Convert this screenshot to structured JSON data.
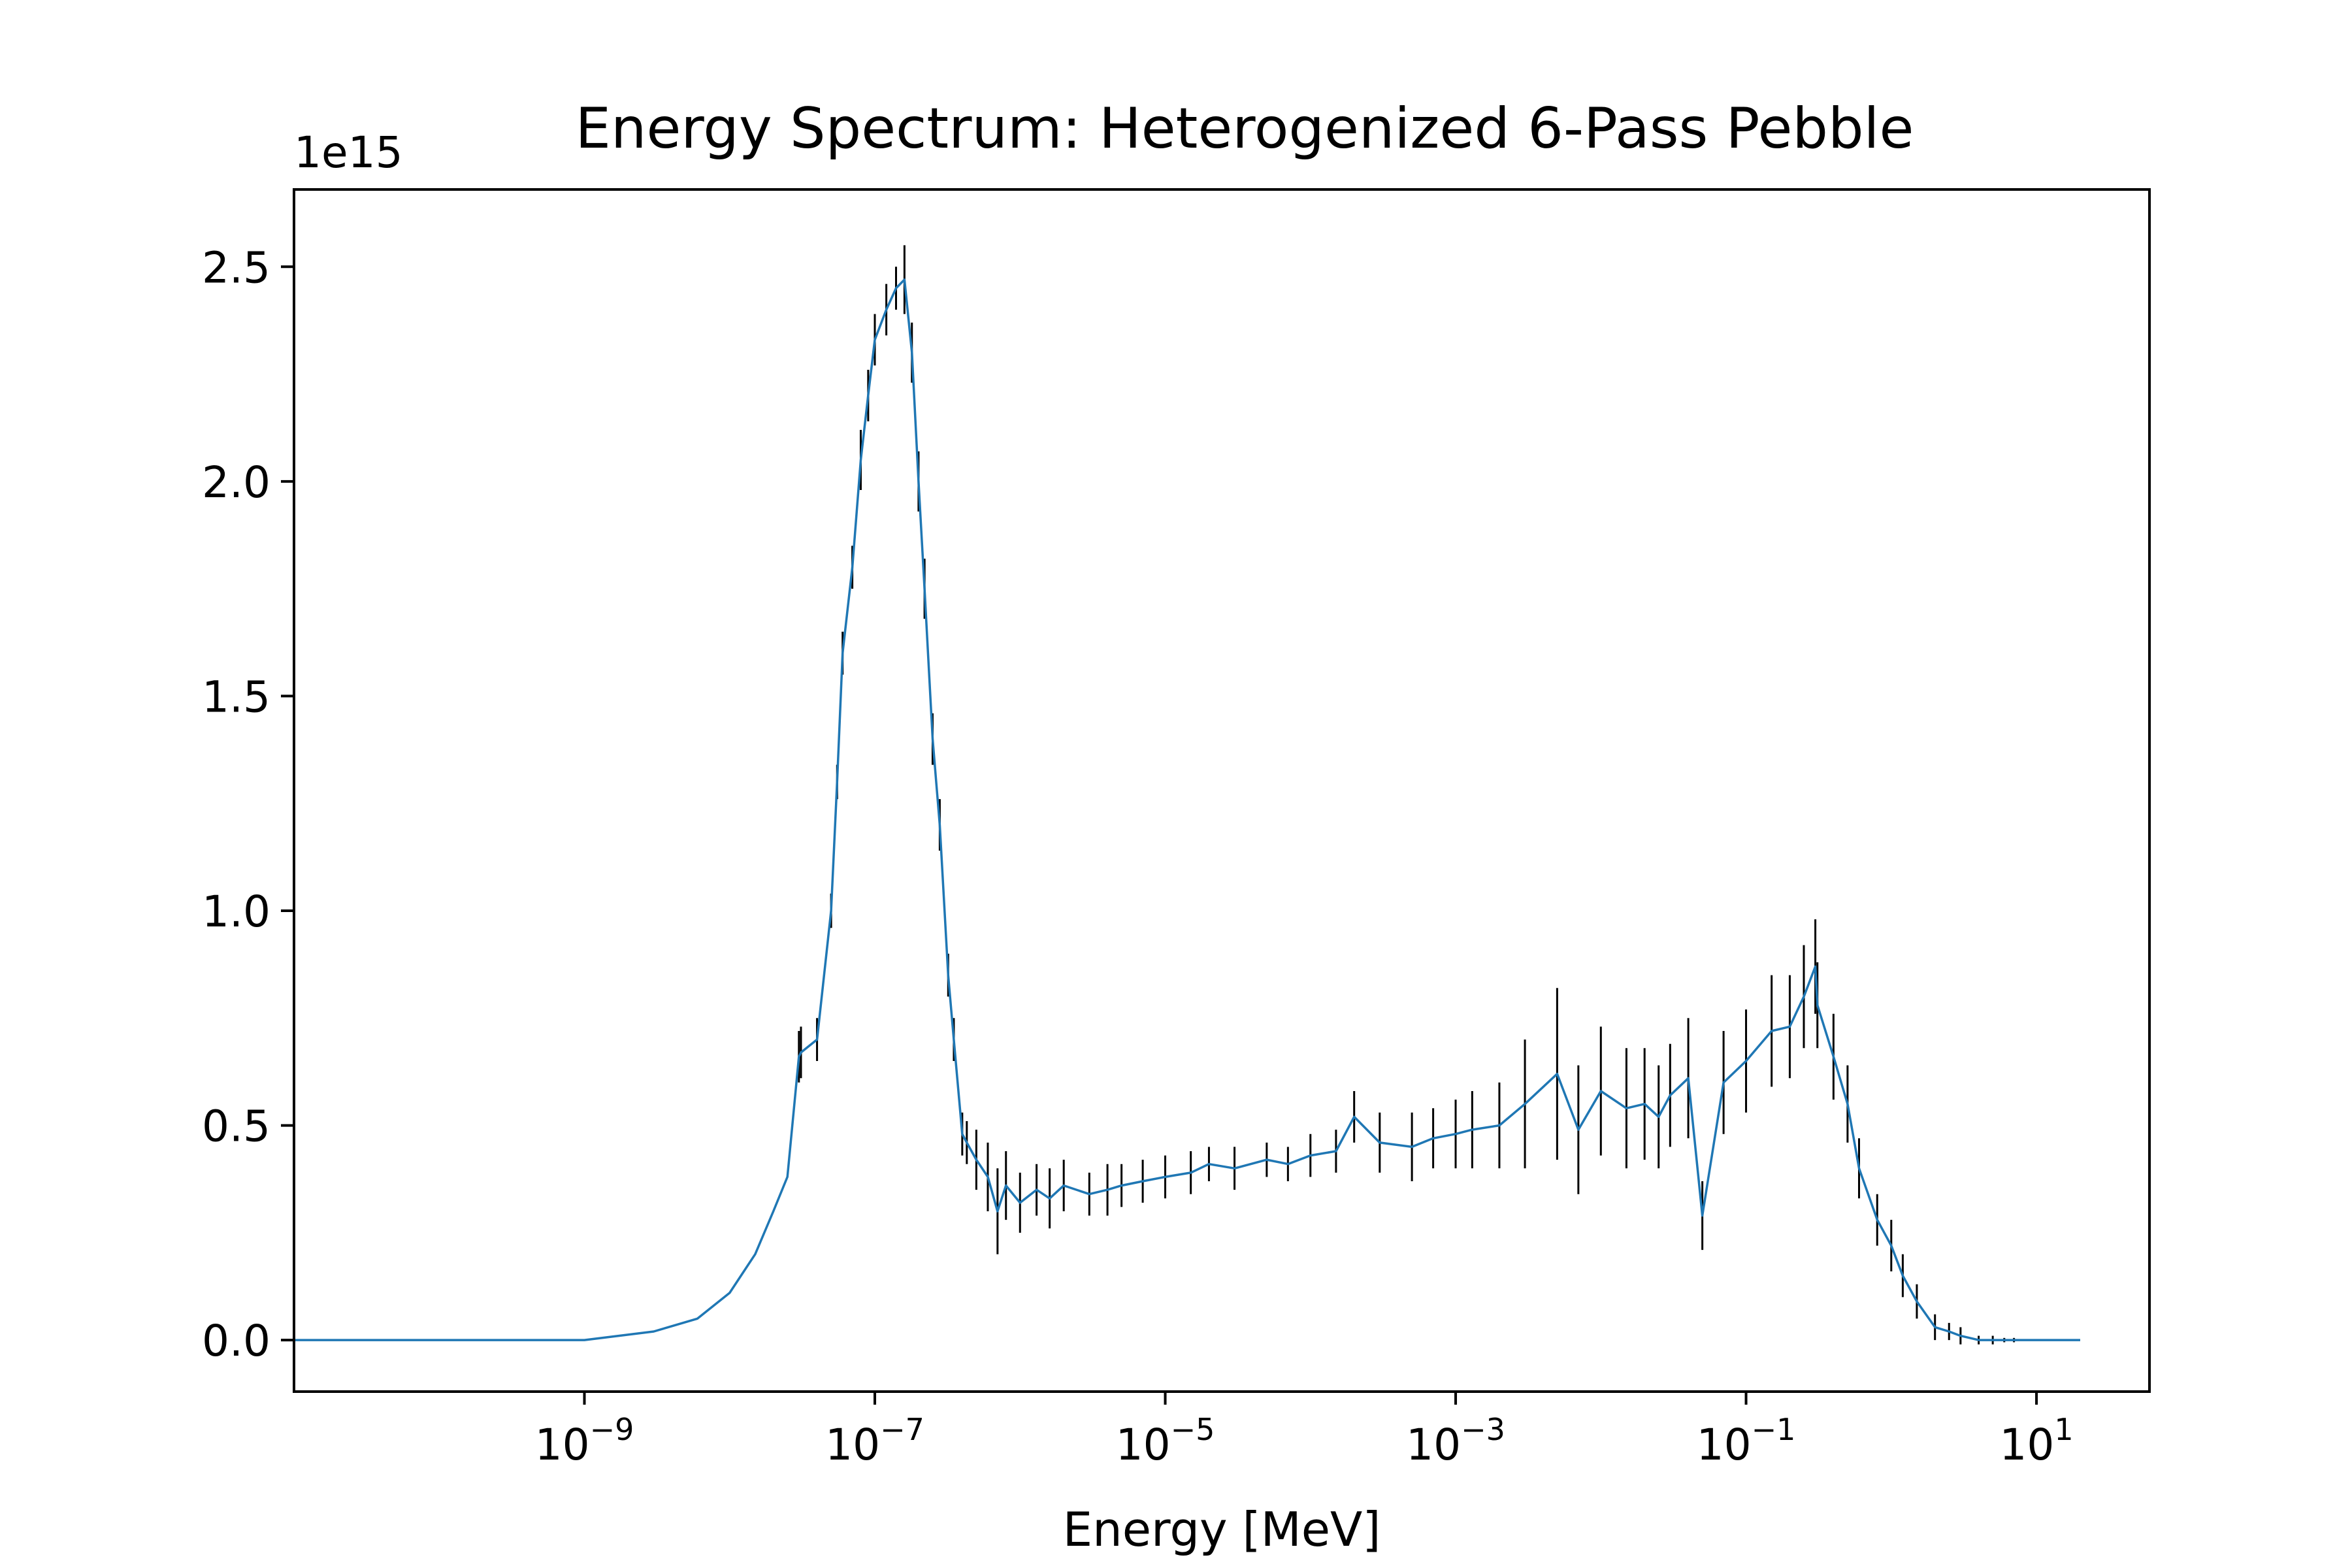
{
  "chart_data": {
    "type": "line",
    "title": "Energy Spectrum: Heterogenized 6-Pass Pebble",
    "xlabel": "Energy [MeV]",
    "ylabel": "",
    "x_scale": "log",
    "xlim": [
      1e-11,
      60
    ],
    "ylim": [
      -120000000000000.0,
      2680000000000000.0
    ],
    "y_offset_label": "1e15",
    "x_ticks": [
      1e-09,
      1e-07,
      1e-05,
      0.001,
      0.1,
      10
    ],
    "x_tick_labels": [
      {
        "base": "10",
        "exp": "−9"
      },
      {
        "base": "10",
        "exp": "−7"
      },
      {
        "base": "10",
        "exp": "−5"
      },
      {
        "base": "10",
        "exp": "−3"
      },
      {
        "base": "10",
        "exp": "−1"
      },
      {
        "base": "10",
        "exp": "1"
      }
    ],
    "y_ticks": [
      0,
      500000000000000.0,
      1000000000000000.0,
      1500000000000000.0,
      2000000000000000.0,
      2500000000000000.0
    ],
    "y_tick_labels": [
      "0.0",
      "0.5",
      "1.0",
      "1.5",
      "2.0",
      "2.5"
    ],
    "line_color": "#1f77b4",
    "errorbar_color": "#000000",
    "series": [
      {
        "error_style": "vertical error bars",
        "x": [
          1e-11,
          1e-10,
          1e-09,
          3e-09,
          6e-09,
          1e-08,
          1.5e-08,
          2e-08,
          2.5e-08,
          3e-08,
          3.1e-08,
          4e-08,
          5e-08,
          5.5e-08,
          6e-08,
          7e-08,
          8e-08,
          9e-08,
          1e-07,
          1.2e-07,
          1.4e-07,
          1.6e-07,
          1.8e-07,
          2e-07,
          2.2e-07,
          2.5e-07,
          2.8e-07,
          3.2e-07,
          3.5e-07,
          4e-07,
          4.3e-07,
          5e-07,
          6e-07,
          7e-07,
          8e-07,
          1e-06,
          1.3e-06,
          1.6e-06,
          2e-06,
          3e-06,
          4e-06,
          5e-06,
          7e-06,
          1e-05,
          1.5e-05,
          2e-05,
          3e-05,
          5e-05,
          7e-05,
          0.0001,
          0.00015,
          0.0002,
          0.0003,
          0.0005,
          0.0007,
          0.001,
          0.0013,
          0.002,
          0.003,
          0.005,
          0.007,
          0.01,
          0.015,
          0.02,
          0.025,
          0.03,
          0.04,
          0.05,
          0.07,
          0.1,
          0.15,
          0.2,
          0.25,
          0.3,
          0.31,
          0.4,
          0.5,
          0.6,
          0.8,
          1.0,
          1.2,
          1.5,
          2.0,
          2.5,
          3.0,
          4.0,
          5.0,
          6.0,
          7.0,
          8.0,
          10.0,
          12.0,
          14.0,
          20.0
        ],
        "y": [
          0,
          0,
          0,
          20000000000000.0,
          50000000000000.0,
          110000000000000.0,
          200000000000000.0,
          300000000000000.0,
          380000000000000.0,
          660000000000000.0,
          670000000000000.0,
          700000000000000.0,
          1000000000000000.0,
          1300000000000000.0,
          1600000000000000.0,
          1800000000000000.0,
          2050000000000000.0,
          2200000000000000.0,
          2330000000000000.0,
          2400000000000000.0,
          2450000000000000.0,
          2470000000000000.0,
          2300000000000000.0,
          2000000000000000.0,
          1750000000000000.0,
          1400000000000000.0,
          1200000000000000.0,
          850000000000000.0,
          700000000000000.0,
          480000000000000.0,
          460000000000000.0,
          420000000000000.0,
          380000000000000.0,
          300000000000000.0,
          360000000000000.0,
          320000000000000.0,
          350000000000000.0,
          330000000000000.0,
          360000000000000.0,
          340000000000000.0,
          350000000000000.0,
          360000000000000.0,
          370000000000000.0,
          380000000000000.0,
          390000000000000.0,
          410000000000000.0,
          400000000000000.0,
          420000000000000.0,
          410000000000000.0,
          430000000000000.0,
          440000000000000.0,
          520000000000000.0,
          460000000000000.0,
          450000000000000.0,
          470000000000000.0,
          480000000000000.0,
          490000000000000.0,
          500000000000000.0,
          550000000000000.0,
          620000000000000.0,
          490000000000000.0,
          580000000000000.0,
          540000000000000.0,
          550000000000000.0,
          520000000000000.0,
          570000000000000.0,
          610000000000000.0,
          290000000000000.0,
          600000000000000.0,
          650000000000000.0,
          720000000000000.0,
          730000000000000.0,
          800000000000000.0,
          870000000000000.0,
          780000000000000.0,
          660000000000000.0,
          550000000000000.0,
          400000000000000.0,
          280000000000000.0,
          220000000000000.0,
          150000000000000.0,
          90000000000000.0,
          30000000000000.0,
          20000000000000.0,
          10000000000000.0,
          0.0,
          0.0,
          0.0,
          0.0,
          0.0,
          0.0,
          0.0,
          0.0,
          0.0
        ],
        "yerr": [
          0,
          0,
          0,
          0,
          0,
          0,
          0,
          0,
          0,
          60000000000000.0,
          60000000000000.0,
          50000000000000.0,
          40000000000000.0,
          40000000000000.0,
          50000000000000.0,
          50000000000000.0,
          70000000000000.0,
          60000000000000.0,
          60000000000000.0,
          60000000000000.0,
          50000000000000.0,
          80000000000000.0,
          70000000000000.0,
          70000000000000.0,
          70000000000000.0,
          60000000000000.0,
          60000000000000.0,
          50000000000000.0,
          50000000000000.0,
          50000000000000.0,
          50000000000000.0,
          70000000000000.0,
          80000000000000.0,
          100000000000000.0,
          80000000000000.0,
          70000000000000.0,
          60000000000000.0,
          70000000000000.0,
          60000000000000.0,
          50000000000000.0,
          60000000000000.0,
          50000000000000.0,
          50000000000000.0,
          50000000000000.0,
          50000000000000.0,
          40000000000000.0,
          50000000000000.0,
          40000000000000.0,
          40000000000000.0,
          50000000000000.0,
          50000000000000.0,
          60000000000000.0,
          70000000000000.0,
          80000000000000.0,
          70000000000000.0,
          80000000000000.0,
          90000000000000.0,
          100000000000000.0,
          150000000000000.0,
          200000000000000.0,
          150000000000000.0,
          150000000000000.0,
          140000000000000.0,
          130000000000000.0,
          120000000000000.0,
          120000000000000.0,
          140000000000000.0,
          80000000000000.0,
          120000000000000.0,
          120000000000000.0,
          130000000000000.0,
          120000000000000.0,
          120000000000000.0,
          110000000000000.0,
          100000000000000.0,
          100000000000000.0,
          90000000000000.0,
          70000000000000.0,
          60000000000000.0,
          60000000000000.0,
          50000000000000.0,
          40000000000000.0,
          30000000000000.0,
          20000000000000.0,
          20000000000000.0,
          10000000000000.0,
          10000000000000.0,
          5000000000000.0,
          5000000000000.0,
          0,
          0,
          0,
          0,
          0
        ]
      }
    ]
  }
}
